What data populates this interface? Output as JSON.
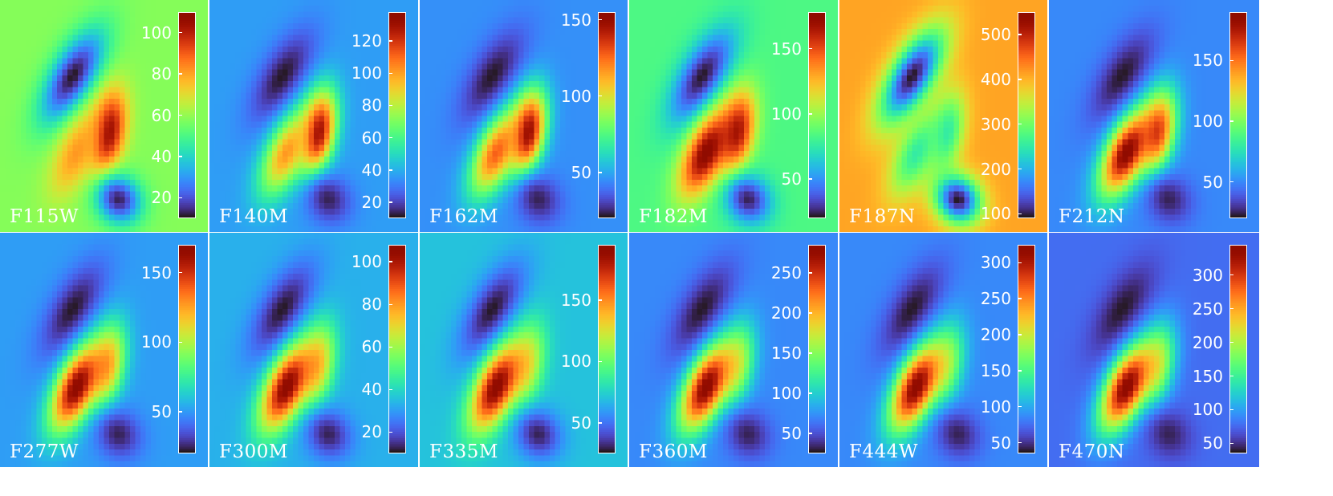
{
  "colormap": "turbo",
  "panels": [
    {
      "filter": "F115W",
      "vmin": 10,
      "vmax": 110,
      "ticks": [
        20,
        40,
        60,
        80,
        100
      ],
      "background": 0.48,
      "lobes": [
        {
          "pos": "upper-left",
          "level": 0.0
        },
        {
          "pos": "center-right",
          "level": 1.0
        },
        {
          "pos": "center-left",
          "level": 0.72
        },
        {
          "pos": "lower-right",
          "level": 0.02
        }
      ]
    },
    {
      "filter": "F140M",
      "vmin": 10,
      "vmax": 138,
      "ticks": [
        20,
        40,
        60,
        80,
        100,
        120
      ],
      "background": 0.2,
      "lobes": [
        {
          "pos": "upper-left",
          "level": 0.0
        },
        {
          "pos": "center-right",
          "level": 1.0
        },
        {
          "pos": "center-left",
          "level": 0.72
        },
        {
          "pos": "lower-right",
          "level": 0.02
        }
      ]
    },
    {
      "filter": "F162M",
      "vmin": 20,
      "vmax": 155,
      "ticks": [
        50,
        100,
        150
      ],
      "background": 0.18,
      "lobes": [
        {
          "pos": "upper-left",
          "level": 0.0
        },
        {
          "pos": "center-right",
          "level": 1.0
        },
        {
          "pos": "center-left",
          "level": 0.8
        },
        {
          "pos": "lower-right",
          "level": 0.02
        }
      ]
    },
    {
      "filter": "F182M",
      "vmin": 20,
      "vmax": 178,
      "ticks": [
        50,
        100,
        150
      ],
      "background": 0.4,
      "lobes": [
        {
          "pos": "upper-left",
          "level": 0.0
        },
        {
          "pos": "center-right",
          "level": 0.92
        },
        {
          "pos": "center-left",
          "level": 1.0
        },
        {
          "pos": "lower-right",
          "level": 0.02
        }
      ]
    },
    {
      "filter": "F187N",
      "vmin": 90,
      "vmax": 550,
      "ticks": [
        100,
        200,
        300,
        400,
        500
      ],
      "background": 0.7,
      "lobes": [
        {
          "pos": "upper-left",
          "level": 0.0
        },
        {
          "pos": "center-right",
          "level": 0.35
        },
        {
          "pos": "center-left",
          "level": 0.35
        },
        {
          "pos": "lower-right",
          "level": 0.0
        }
      ]
    },
    {
      "filter": "F212N",
      "vmin": 20,
      "vmax": 190,
      "ticks": [
        50,
        100,
        150
      ],
      "background": 0.17,
      "lobes": [
        {
          "pos": "upper-left",
          "level": 0.0
        },
        {
          "pos": "center-right",
          "level": 0.82
        },
        {
          "pos": "center-left",
          "level": 1.0
        },
        {
          "pos": "lower-right",
          "level": 0.02
        }
      ]
    },
    {
      "filter": "F277W",
      "vmin": 20,
      "vmax": 170,
      "ticks": [
        50,
        100,
        150
      ],
      "background": 0.2,
      "lobes": [
        {
          "pos": "upper-left",
          "level": 0.0
        },
        {
          "pos": "center-right",
          "level": 0.65
        },
        {
          "pos": "center-left",
          "level": 1.0
        },
        {
          "pos": "lower-right",
          "level": 0.02
        }
      ]
    },
    {
      "filter": "F300M",
      "vmin": 10,
      "vmax": 108,
      "ticks": [
        20,
        40,
        60,
        80,
        100
      ],
      "background": 0.23,
      "lobes": [
        {
          "pos": "upper-left",
          "level": 0.0
        },
        {
          "pos": "center-right",
          "level": 0.62
        },
        {
          "pos": "center-left",
          "level": 1.0
        },
        {
          "pos": "lower-right",
          "level": 0.02
        }
      ]
    },
    {
      "filter": "F335M",
      "vmin": 25,
      "vmax": 195,
      "ticks": [
        50,
        100,
        150
      ],
      "background": 0.26,
      "lobes": [
        {
          "pos": "upper-left",
          "level": 0.0
        },
        {
          "pos": "center-right",
          "level": 0.55
        },
        {
          "pos": "center-left",
          "level": 1.0
        },
        {
          "pos": "lower-right",
          "level": 0.02
        }
      ]
    },
    {
      "filter": "F360M",
      "vmin": 25,
      "vmax": 285,
      "ticks": [
        50,
        100,
        150,
        200,
        250
      ],
      "background": 0.17,
      "lobes": [
        {
          "pos": "upper-left",
          "level": 0.0
        },
        {
          "pos": "center-right",
          "level": 0.5
        },
        {
          "pos": "center-left",
          "level": 1.0
        },
        {
          "pos": "lower-right",
          "level": 0.02
        }
      ]
    },
    {
      "filter": "F444W",
      "vmin": 35,
      "vmax": 325,
      "ticks": [
        50,
        100,
        150,
        200,
        250,
        300
      ],
      "background": 0.17,
      "lobes": [
        {
          "pos": "upper-left",
          "level": 0.0
        },
        {
          "pos": "center-right",
          "level": 0.45
        },
        {
          "pos": "center-left",
          "level": 1.0
        },
        {
          "pos": "lower-right",
          "level": 0.02
        }
      ]
    },
    {
      "filter": "F470N",
      "vmin": 35,
      "vmax": 345,
      "ticks": [
        50,
        100,
        150,
        200,
        250,
        300
      ],
      "background": 0.13,
      "lobes": [
        {
          "pos": "upper-left",
          "level": 0.0
        },
        {
          "pos": "center-right",
          "level": 0.5
        },
        {
          "pos": "center-left",
          "level": 1.0
        },
        {
          "pos": "lower-right",
          "level": 0.02
        }
      ]
    }
  ]
}
